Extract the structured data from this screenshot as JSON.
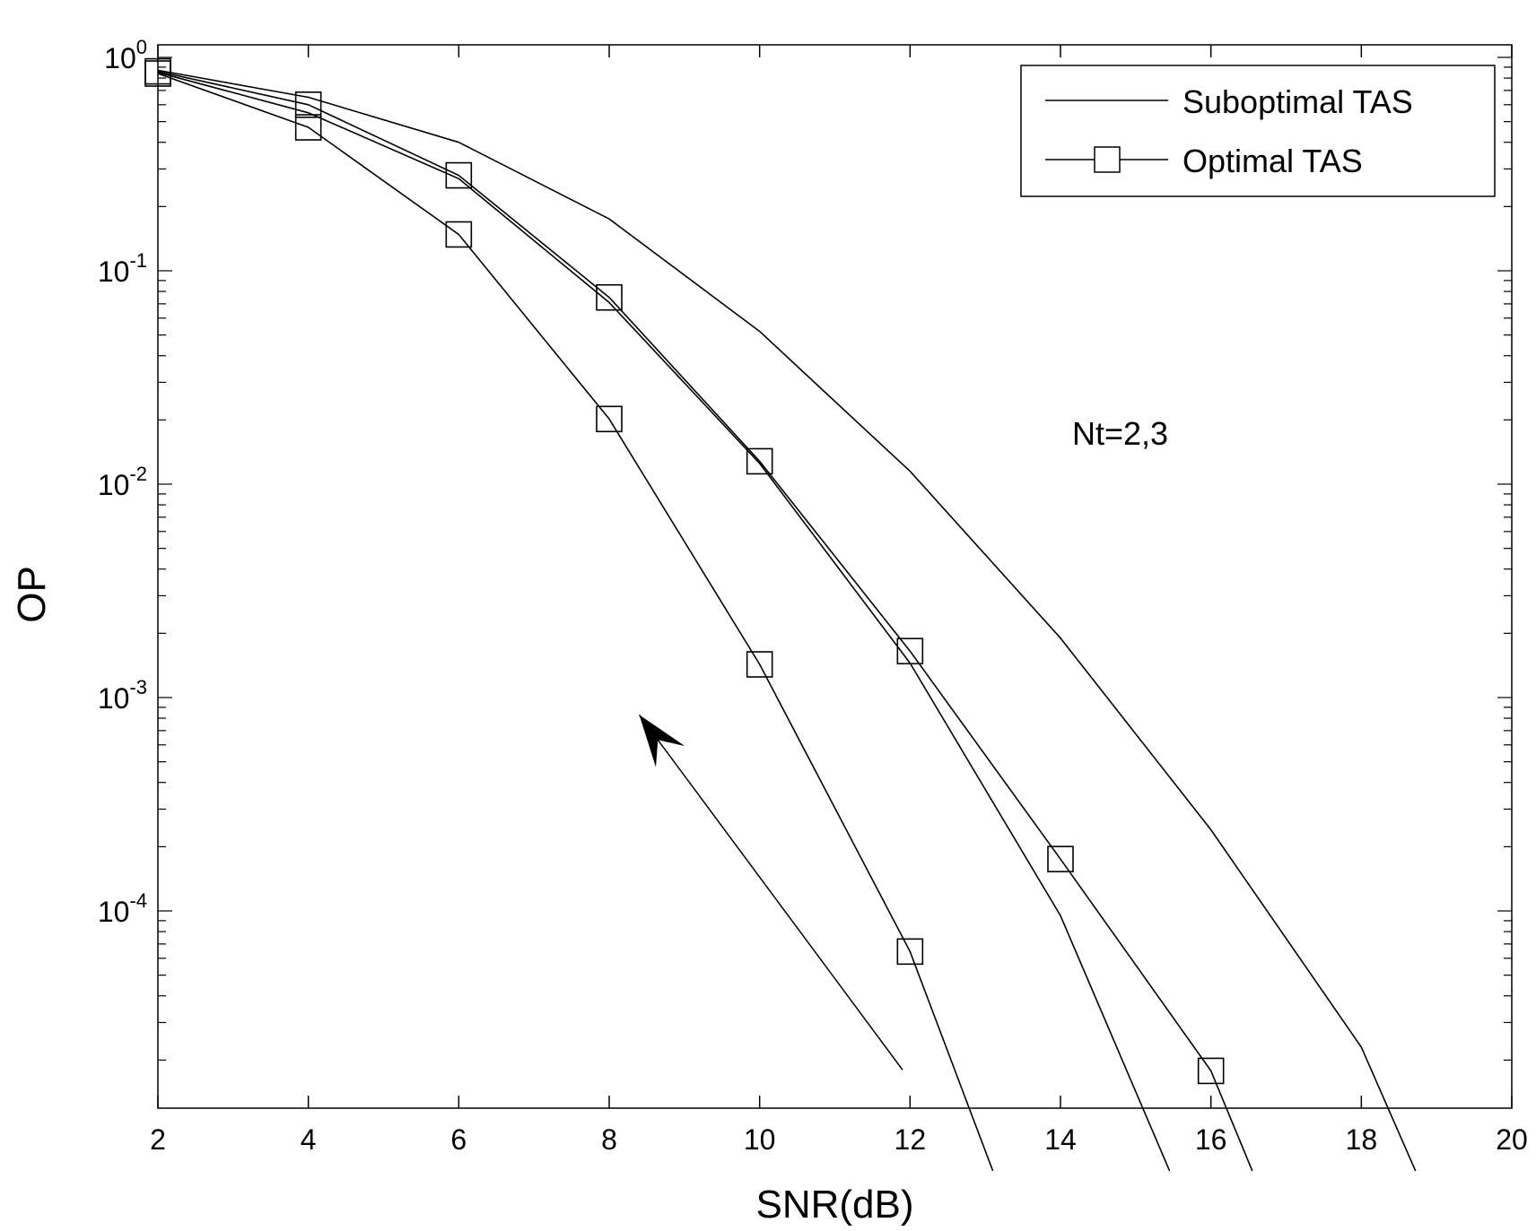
{
  "chart_data": {
    "type": "line",
    "title": "",
    "xlabel": "SNR(dB)",
    "ylabel": "OP",
    "xlim": [
      2,
      20
    ],
    "ylim": [
      1e-05,
      1
    ],
    "yscale": "log",
    "x_ticks": [
      2,
      4,
      6,
      8,
      10,
      12,
      14,
      16,
      18,
      20
    ],
    "y_ticks": [
      {
        "value": 1,
        "base": "10",
        "exp": "0"
      },
      {
        "value": 0.1,
        "base": "10",
        "exp": "-1"
      },
      {
        "value": 0.01,
        "base": "10",
        "exp": "-2"
      },
      {
        "value": 0.001,
        "base": "10",
        "exp": "-3"
      },
      {
        "value": 0.0001,
        "base": "10",
        "exp": "-4"
      }
    ],
    "grid": false,
    "legend_position": "top-right",
    "legend": [
      {
        "label": "Suboptimal TAS",
        "marker": "none"
      },
      {
        "label": "Optimal TAS",
        "marker": "square"
      }
    ],
    "series": [
      {
        "type": "suboptimal",
        "marker": "none",
        "points": [
          [
            2,
            0.87
          ],
          [
            4,
            0.65
          ],
          [
            6,
            0.4
          ],
          [
            8,
            0.175
          ],
          [
            10,
            0.052
          ],
          [
            12,
            0.0115
          ],
          [
            14,
            0.0019
          ],
          [
            16,
            0.00024
          ],
          [
            18,
            2.3e-05
          ],
          [
            18.72,
            6.05e-06
          ]
        ]
      },
      {
        "type": "suboptimal",
        "marker": "none",
        "points": [
          [
            2,
            0.85
          ],
          [
            4,
            0.55
          ],
          [
            6,
            0.27
          ],
          [
            8,
            0.071
          ],
          [
            10,
            0.0125
          ],
          [
            12,
            0.00145
          ],
          [
            14,
            9.5e-05
          ],
          [
            15.45,
            6.05e-06
          ]
        ]
      },
      {
        "type": "optimal",
        "marker": "square",
        "points": [
          [
            2,
            0.86
          ],
          [
            4,
            0.6
          ],
          [
            6,
            0.28
          ],
          [
            8,
            0.075
          ],
          [
            10,
            0.0128
          ],
          [
            12,
            0.00165
          ],
          [
            14,
            0.000175
          ],
          [
            16,
            1.78e-05
          ],
          [
            16.55,
            6.05e-06
          ]
        ]
      },
      {
        "type": "optimal",
        "marker": "square",
        "points": [
          [
            2,
            0.84
          ],
          [
            4,
            0.47
          ],
          [
            6,
            0.148
          ],
          [
            8,
            0.0202
          ],
          [
            10,
            0.00143
          ],
          [
            12,
            6.45e-05
          ],
          [
            13.1,
            6.05e-06
          ]
        ]
      }
    ],
    "annotation": {
      "text": "Nt=2,3",
      "arrow_from": [
        11.9,
        1.8e-05
      ],
      "arrow_to": [
        8.4,
        0.00083
      ]
    }
  }
}
